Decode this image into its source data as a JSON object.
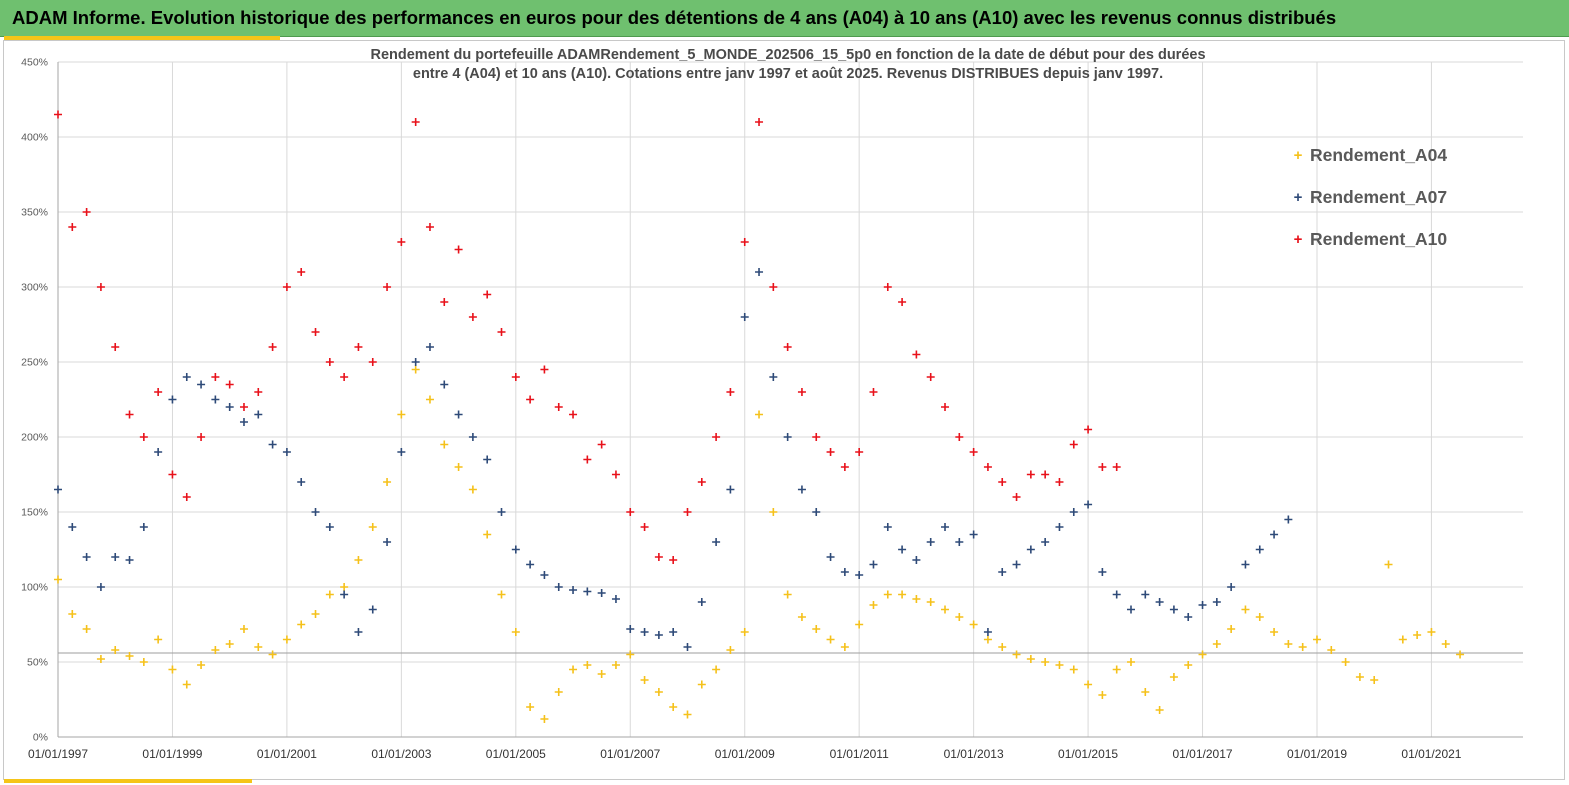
{
  "header": {
    "title": "ADAM Informe. Evolution historique des performances en euros pour des détentions de 4 ans (A04) à 10 ans (A10) avec les revenus connus distribués"
  },
  "chart_data": {
    "type": "scatter",
    "title_line1": "Rendement du portefeuille ADAMRendement_5_MONDE_202506_15_5p0  en fonction de la date de début pour des durées",
    "title_line2": "entre 4 (A04) et 10 ans (A10). Cotations  entre janv 1997 et août 2025. Revenus DISTRIBUES depuis janv 1997.",
    "xlabel": "",
    "ylabel": "",
    "x_ticks": [
      "01/01/1997",
      "01/01/1999",
      "01/01/2001",
      "01/01/2003",
      "01/01/2005",
      "01/01/2007",
      "01/01/2009",
      "01/01/2011",
      "01/01/2013",
      "01/01/2015",
      "01/01/2017",
      "01/01/2019",
      "01/01/2021"
    ],
    "y_ticks": [
      "0%",
      "50%",
      "100%",
      "150%",
      "200%",
      "250%",
      "300%",
      "350%",
      "400%",
      "450%"
    ],
    "xlim": [
      1997.0,
      2022.6
    ],
    "ylim": [
      0,
      450
    ],
    "grid": true,
    "legend_position": "top-right",
    "reference_line_y": 56,
    "series": [
      {
        "name": "Rendement_A04",
        "color": "#f5c11a",
        "x": [
          1997.0,
          1997.25,
          1997.5,
          1997.75,
          1998.0,
          1998.25,
          1998.5,
          1998.75,
          1999.0,
          1999.25,
          1999.5,
          1999.75,
          2000.0,
          2000.25,
          2000.5,
          2000.75,
          2001.0,
          2001.25,
          2001.5,
          2001.75,
          2002.0,
          2002.25,
          2002.5,
          2002.75,
          2003.0,
          2003.25,
          2003.5,
          2003.75,
          2004.0,
          2004.25,
          2004.5,
          2004.75,
          2005.0,
          2005.25,
          2005.5,
          2005.75,
          2006.0,
          2006.25,
          2006.5,
          2006.75,
          2007.0,
          2007.25,
          2007.5,
          2007.75,
          2008.0,
          2008.25,
          2008.5,
          2008.75,
          2009.0,
          2009.25,
          2009.5,
          2009.75,
          2010.0,
          2010.25,
          2010.5,
          2010.75,
          2011.0,
          2011.25,
          2011.5,
          2011.75,
          2012.0,
          2012.25,
          2012.5,
          2012.75,
          2013.0,
          2013.25,
          2013.5,
          2013.75,
          2014.0,
          2014.25,
          2014.5,
          2014.75,
          2015.0,
          2015.25,
          2015.5,
          2015.75,
          2016.0,
          2016.25,
          2016.5,
          2016.75,
          2017.0,
          2017.25,
          2017.5,
          2017.75,
          2018.0,
          2018.25,
          2018.5,
          2018.75,
          2019.0,
          2019.25,
          2019.5,
          2019.75,
          2020.0,
          2020.25,
          2020.5,
          2020.75,
          2021.0,
          2021.25,
          2021.5
        ],
        "y": [
          105,
          82,
          72,
          52,
          58,
          54,
          50,
          65,
          45,
          35,
          48,
          58,
          62,
          72,
          60,
          55,
          65,
          75,
          82,
          95,
          100,
          118,
          140,
          170,
          215,
          245,
          225,
          195,
          180,
          165,
          135,
          95,
          70,
          20,
          12,
          30,
          45,
          48,
          42,
          48,
          55,
          38,
          30,
          20,
          15,
          35,
          45,
          58,
          70,
          215,
          150,
          95,
          80,
          72,
          65,
          60,
          75,
          88,
          95,
          95,
          92,
          90,
          85,
          80,
          75,
          65,
          60,
          55,
          52,
          50,
          48,
          45,
          35,
          28,
          45,
          50,
          30,
          18,
          40,
          48,
          55,
          62,
          72,
          85,
          80,
          70,
          62,
          60,
          65,
          58,
          50,
          40,
          38,
          115,
          65,
          68,
          70,
          62,
          55
        ]
      },
      {
        "name": "Rendement_A07",
        "color": "#2e4a78",
        "x": [
          1997.0,
          1997.25,
          1997.5,
          1997.75,
          1998.0,
          1998.25,
          1998.5,
          1998.75,
          1999.0,
          1999.25,
          1999.5,
          1999.75,
          2000.0,
          2000.25,
          2000.5,
          2000.75,
          2001.0,
          2001.25,
          2001.5,
          2001.75,
          2002.0,
          2002.25,
          2002.5,
          2002.75,
          2003.0,
          2003.25,
          2003.5,
          2003.75,
          2004.0,
          2004.25,
          2004.5,
          2004.75,
          2005.0,
          2005.25,
          2005.5,
          2005.75,
          2006.0,
          2006.25,
          2006.5,
          2006.75,
          2007.0,
          2007.25,
          2007.5,
          2007.75,
          2008.0,
          2008.25,
          2008.5,
          2008.75,
          2009.0,
          2009.25,
          2009.5,
          2009.75,
          2010.0,
          2010.25,
          2010.5,
          2010.75,
          2011.0,
          2011.25,
          2011.5,
          2011.75,
          2012.0,
          2012.25,
          2012.5,
          2012.75,
          2013.0,
          2013.25,
          2013.5,
          2013.75,
          2014.0,
          2014.25,
          2014.5,
          2014.75,
          2015.0,
          2015.25,
          2015.5,
          2015.75,
          2016.0,
          2016.25,
          2016.5,
          2016.75,
          2017.0,
          2017.25,
          2017.5,
          2017.75,
          2018.0,
          2018.25,
          2018.5
        ],
        "y": [
          165,
          140,
          120,
          100,
          120,
          118,
          140,
          190,
          225,
          240,
          235,
          225,
          220,
          210,
          215,
          195,
          190,
          170,
          150,
          140,
          95,
          70,
          85,
          130,
          190,
          250,
          260,
          235,
          215,
          200,
          185,
          150,
          125,
          115,
          108,
          100,
          98,
          97,
          96,
          92,
          72,
          70,
          68,
          70,
          60,
          90,
          130,
          165,
          280,
          310,
          240,
          200,
          165,
          150,
          120,
          110,
          108,
          115,
          140,
          125,
          118,
          130,
          140,
          130,
          135,
          70,
          110,
          115,
          125,
          130,
          140,
          150,
          155,
          110,
          95,
          85,
          95,
          90,
          85,
          80,
          88,
          90,
          100,
          115,
          125,
          135,
          145
        ]
      },
      {
        "name": "Rendement_A10",
        "color": "#e8111a",
        "x": [
          1997.0,
          1997.25,
          1997.5,
          1997.75,
          1998.0,
          1998.25,
          1998.5,
          1998.75,
          1999.0,
          1999.25,
          1999.5,
          1999.75,
          2000.0,
          2000.25,
          2000.5,
          2000.75,
          2001.0,
          2001.25,
          2001.5,
          2001.75,
          2002.0,
          2002.25,
          2002.5,
          2002.75,
          2003.0,
          2003.25,
          2003.5,
          2003.75,
          2004.0,
          2004.25,
          2004.5,
          2004.75,
          2005.0,
          2005.25,
          2005.5,
          2005.75,
          2006.0,
          2006.25,
          2006.5,
          2006.75,
          2007.0,
          2007.25,
          2007.5,
          2007.75,
          2008.0,
          2008.25,
          2008.5,
          2008.75,
          2009.0,
          2009.25,
          2009.5,
          2009.75,
          2010.0,
          2010.25,
          2010.5,
          2010.75,
          2011.0,
          2011.25,
          2011.5,
          2011.75,
          2012.0,
          2012.25,
          2012.5,
          2012.75,
          2013.0,
          2013.25,
          2013.5,
          2013.75,
          2014.0,
          2014.25,
          2014.5,
          2014.75,
          2015.0,
          2015.25,
          2015.5
        ],
        "y": [
          415,
          340,
          350,
          300,
          260,
          215,
          200,
          230,
          175,
          160,
          200,
          240,
          235,
          220,
          230,
          260,
          300,
          310,
          270,
          250,
          240,
          260,
          250,
          300,
          330,
          410,
          340,
          290,
          325,
          280,
          295,
          270,
          240,
          225,
          245,
          220,
          215,
          185,
          195,
          175,
          150,
          140,
          120,
          118,
          150,
          170,
          200,
          230,
          330,
          410,
          300,
          260,
          230,
          200,
          190,
          180,
          190,
          230,
          300,
          290,
          255,
          240,
          220,
          200,
          190,
          180,
          170,
          160,
          175,
          175,
          170,
          195,
          205,
          180,
          180
        ]
      }
    ]
  }
}
